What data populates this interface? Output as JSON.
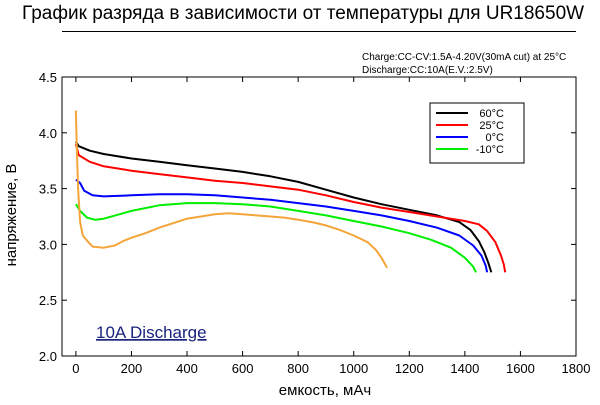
{
  "title": "График разряда в зависимости от температуры для UR18650W",
  "chart_data": {
    "type": "line",
    "title": "График разряда в зависимости от температуры для UR18650W",
    "conditions": [
      "Charge:CC-CV:1.5A-4.20V(30mA cut) at 25°C",
      "Discharge:CC:10A(E.V.:2.5V)"
    ],
    "annotation": "10A Discharge",
    "xlabel": "емкость, мАч",
    "ylabel": "напряжение, В",
    "xlim": [
      -50,
      1800
    ],
    "ylim": [
      2.0,
      4.5
    ],
    "xticks": [
      0,
      200,
      400,
      600,
      800,
      1000,
      1200,
      1400,
      1600,
      1800
    ],
    "yticks": [
      2.0,
      2.5,
      3.0,
      3.5,
      4.0,
      4.5
    ],
    "legend_position": "top-right",
    "grid": false,
    "series": [
      {
        "name": "60°C",
        "color": "#000000",
        "points": [
          [
            0,
            3.92
          ],
          [
            10,
            3.88
          ],
          [
            50,
            3.84
          ],
          [
            100,
            3.81
          ],
          [
            200,
            3.77
          ],
          [
            300,
            3.74
          ],
          [
            400,
            3.71
          ],
          [
            500,
            3.68
          ],
          [
            600,
            3.65
          ],
          [
            700,
            3.61
          ],
          [
            800,
            3.56
          ],
          [
            900,
            3.49
          ],
          [
            1000,
            3.42
          ],
          [
            1100,
            3.36
          ],
          [
            1200,
            3.31
          ],
          [
            1300,
            3.26
          ],
          [
            1380,
            3.2
          ],
          [
            1420,
            3.13
          ],
          [
            1450,
            3.03
          ],
          [
            1470,
            2.93
          ],
          [
            1485,
            2.83
          ],
          [
            1495,
            2.75
          ]
        ]
      },
      {
        "name": "25°C",
        "color": "#ff0000",
        "points": [
          [
            0,
            3.9
          ],
          [
            10,
            3.8
          ],
          [
            50,
            3.74
          ],
          [
            100,
            3.7
          ],
          [
            200,
            3.66
          ],
          [
            300,
            3.63
          ],
          [
            400,
            3.6
          ],
          [
            500,
            3.57
          ],
          [
            600,
            3.55
          ],
          [
            700,
            3.52
          ],
          [
            800,
            3.49
          ],
          [
            900,
            3.44
          ],
          [
            1000,
            3.38
          ],
          [
            1100,
            3.33
          ],
          [
            1200,
            3.29
          ],
          [
            1300,
            3.25
          ],
          [
            1400,
            3.21
          ],
          [
            1450,
            3.18
          ],
          [
            1480,
            3.12
          ],
          [
            1510,
            3.02
          ],
          [
            1530,
            2.9
          ],
          [
            1540,
            2.82
          ],
          [
            1545,
            2.75
          ]
        ]
      },
      {
        "name": "0°C",
        "color": "#0000ff",
        "points": [
          [
            0,
            3.58
          ],
          [
            15,
            3.55
          ],
          [
            30,
            3.48
          ],
          [
            60,
            3.44
          ],
          [
            100,
            3.43
          ],
          [
            200,
            3.44
          ],
          [
            300,
            3.45
          ],
          [
            400,
            3.45
          ],
          [
            500,
            3.44
          ],
          [
            600,
            3.42
          ],
          [
            700,
            3.4
          ],
          [
            800,
            3.37
          ],
          [
            900,
            3.34
          ],
          [
            1000,
            3.3
          ],
          [
            1100,
            3.26
          ],
          [
            1200,
            3.21
          ],
          [
            1300,
            3.15
          ],
          [
            1380,
            3.08
          ],
          [
            1430,
            2.99
          ],
          [
            1460,
            2.9
          ],
          [
            1475,
            2.81
          ],
          [
            1480,
            2.75
          ]
        ]
      },
      {
        "name": "-10°C",
        "color": "#00ee00",
        "points": [
          [
            0,
            3.36
          ],
          [
            15,
            3.3
          ],
          [
            40,
            3.24
          ],
          [
            70,
            3.22
          ],
          [
            100,
            3.23
          ],
          [
            200,
            3.3
          ],
          [
            300,
            3.35
          ],
          [
            400,
            3.37
          ],
          [
            500,
            3.37
          ],
          [
            600,
            3.36
          ],
          [
            700,
            3.34
          ],
          [
            800,
            3.3
          ],
          [
            900,
            3.26
          ],
          [
            1000,
            3.21
          ],
          [
            1100,
            3.16
          ],
          [
            1200,
            3.1
          ],
          [
            1280,
            3.04
          ],
          [
            1350,
            2.97
          ],
          [
            1400,
            2.88
          ],
          [
            1430,
            2.8
          ],
          [
            1440,
            2.75
          ]
        ]
      },
      {
        "name": "",
        "color": "#f4a53a",
        "points": [
          [
            0,
            4.2
          ],
          [
            3,
            3.9
          ],
          [
            8,
            3.5
          ],
          [
            15,
            3.2
          ],
          [
            25,
            3.08
          ],
          [
            45,
            3.02
          ],
          [
            60,
            2.98
          ],
          [
            100,
            2.97
          ],
          [
            140,
            2.99
          ],
          [
            170,
            3.03
          ],
          [
            200,
            3.06
          ],
          [
            250,
            3.1
          ],
          [
            300,
            3.15
          ],
          [
            350,
            3.19
          ],
          [
            400,
            3.23
          ],
          [
            450,
            3.25
          ],
          [
            500,
            3.27
          ],
          [
            550,
            3.28
          ],
          [
            600,
            3.27
          ],
          [
            650,
            3.26
          ],
          [
            700,
            3.25
          ],
          [
            750,
            3.24
          ],
          [
            800,
            3.22
          ],
          [
            850,
            3.2
          ],
          [
            900,
            3.17
          ],
          [
            950,
            3.13
          ],
          [
            1000,
            3.08
          ],
          [
            1050,
            3.02
          ],
          [
            1080,
            2.95
          ],
          [
            1100,
            2.88
          ],
          [
            1120,
            2.79
          ]
        ]
      }
    ]
  }
}
